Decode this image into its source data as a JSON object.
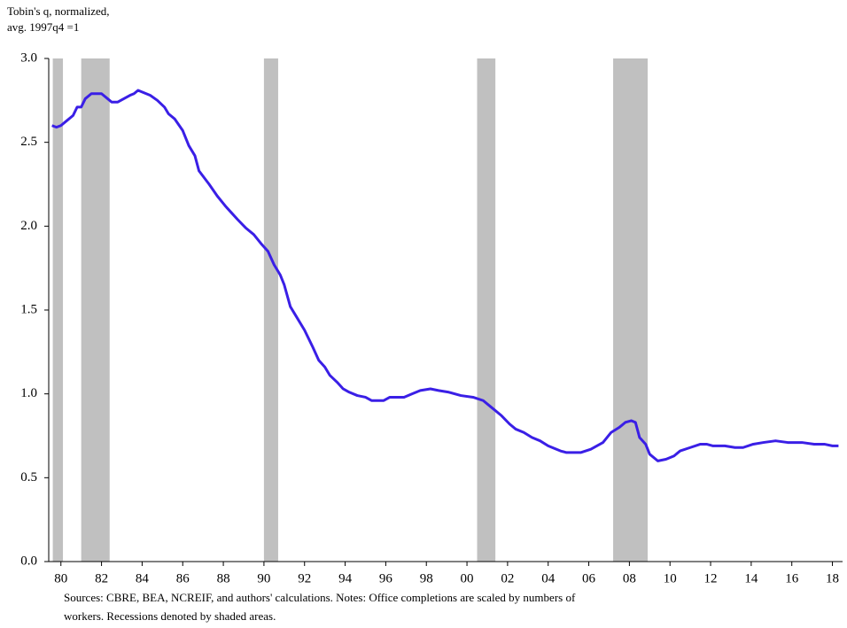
{
  "chart_data": {
    "type": "line",
    "y_axis_label": [
      "Tobin's q, normalized,",
      "avg. 1997q4 =1"
    ],
    "note": [
      "Sources: CBRE, BEA, NCREIF, and authors' calculations.  Notes: Office completions are scaled by numbers of",
      "workers. Recessions denoted by shaded areas."
    ],
    "xlim": [
      1979.4,
      2018.5
    ],
    "xticks": [
      {
        "value": 1980,
        "label": "80"
      },
      {
        "value": 1982,
        "label": "82"
      },
      {
        "value": 1984,
        "label": "84"
      },
      {
        "value": 1986,
        "label": "86"
      },
      {
        "value": 1988,
        "label": "88"
      },
      {
        "value": 1990,
        "label": "90"
      },
      {
        "value": 1992,
        "label": "92"
      },
      {
        "value": 1994,
        "label": "94"
      },
      {
        "value": 1996,
        "label": "96"
      },
      {
        "value": 1998,
        "label": "98"
      },
      {
        "value": 2000,
        "label": "00"
      },
      {
        "value": 2002,
        "label": "02"
      },
      {
        "value": 2004,
        "label": "04"
      },
      {
        "value": 2006,
        "label": "06"
      },
      {
        "value": 2008,
        "label": "08"
      },
      {
        "value": 2010,
        "label": "10"
      },
      {
        "value": 2012,
        "label": "12"
      },
      {
        "value": 2014,
        "label": "14"
      },
      {
        "value": 2016,
        "label": "16"
      },
      {
        "value": 2018,
        "label": "18"
      }
    ],
    "ylim": [
      0,
      3
    ],
    "yticks": [
      {
        "value": 0,
        "label": "0.0"
      },
      0.5,
      {
        "value": 1,
        "label": "1.0"
      },
      1.5,
      {
        "value": 2,
        "label": "2.0"
      },
      2.5,
      {
        "value": 3,
        "label": "3.0"
      }
    ],
    "recession_color": "#c0c0c0",
    "recessions": [
      [
        1979.6,
        1980.1
      ],
      [
        1981.0,
        1982.4
      ],
      [
        1990.0,
        1990.7
      ],
      [
        2000.5,
        2001.4
      ],
      [
        2007.2,
        2008.9
      ]
    ],
    "series": [
      {
        "name": "Tobin's q",
        "color": "#3a1fe6",
        "x": [
          1979.56,
          1979.78,
          1980,
          1980.3,
          1980.6,
          1980.8,
          1981.0,
          1981.2,
          1981.5,
          1982.0,
          1982.3,
          1982.5,
          1982.8,
          1983.1,
          1983.4,
          1983.6,
          1983.8,
          1984.0,
          1984.4,
          1984.75,
          1985.1,
          1985.3,
          1985.6,
          1986.0,
          1986.3,
          1986.6,
          1986.8,
          1987.3,
          1987.7,
          1988.1,
          1988.4,
          1988.7,
          1989.1,
          1989.5,
          1989.9,
          1990.2,
          1990.5,
          1990.8,
          1991.0,
          1991.3,
          1991.6,
          1992.0,
          1992.4,
          1992.7,
          1993.0,
          1993.25,
          1993.6,
          1993.9,
          1994.2,
          1994.6,
          1995.0,
          1995.3,
          1995.9,
          1996.2,
          1996.9,
          1997.3,
          1997.7,
          1998.2,
          1998.6,
          1999.1,
          1999.7,
          2000.3,
          2000.8,
          2001.2,
          2001.7,
          2002.1,
          2002.4,
          2002.8,
          2003.2,
          2003.6,
          2004.0,
          2004.6,
          2004.9,
          2005.6,
          2006.1,
          2006.7,
          2007.1,
          2007.5,
          2007.8,
          2008.1,
          2008.3,
          2008.5,
          2008.8,
          2009.0,
          2009.4,
          2009.8,
          2010.2,
          2010.5,
          2011.0,
          2011.5,
          2011.8,
          2012.1,
          2012.7,
          2013.2,
          2013.6,
          2014.1,
          2014.6,
          2015.2,
          2015.8,
          2016.5,
          2017.1,
          2017.6,
          2018.0,
          2018.3
        ],
        "values": [
          2.6,
          2.59,
          2.6,
          2.63,
          2.66,
          2.71,
          2.71,
          2.76,
          2.79,
          2.79,
          2.76,
          2.74,
          2.74,
          2.76,
          2.78,
          2.79,
          2.81,
          2.8,
          2.78,
          2.75,
          2.71,
          2.67,
          2.64,
          2.57,
          2.48,
          2.42,
          2.33,
          2.25,
          2.18,
          2.12,
          2.08,
          2.04,
          1.99,
          1.95,
          1.89,
          1.85,
          1.77,
          1.71,
          1.65,
          1.52,
          1.46,
          1.38,
          1.28,
          1.2,
          1.16,
          1.11,
          1.07,
          1.03,
          1.01,
          0.99,
          0.98,
          0.96,
          0.96,
          0.98,
          0.98,
          1.0,
          1.02,
          1.03,
          1.02,
          1.01,
          0.99,
          0.98,
          0.96,
          0.92,
          0.87,
          0.82,
          0.79,
          0.77,
          0.74,
          0.72,
          0.69,
          0.66,
          0.65,
          0.65,
          0.67,
          0.71,
          0.77,
          0.8,
          0.83,
          0.84,
          0.83,
          0.74,
          0.7,
          0.64,
          0.6,
          0.61,
          0.63,
          0.66,
          0.68,
          0.7,
          0.7,
          0.69,
          0.69,
          0.68,
          0.68,
          0.7,
          0.71,
          0.72,
          0.71,
          0.71,
          0.7,
          0.7,
          0.69,
          0.69
        ]
      }
    ]
  }
}
